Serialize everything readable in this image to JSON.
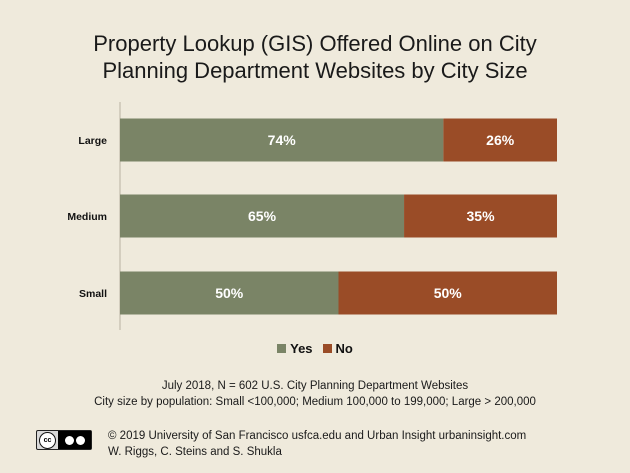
{
  "chart_data": {
    "type": "bar",
    "orientation": "horizontal",
    "stacked": true,
    "title": "Property Lookup (GIS) Offered Online on City Planning Department Websites by City Size",
    "title_lines": [
      "Property Lookup (GIS) Offered Online on City",
      "Planning Department Websites by City Size"
    ],
    "categories": [
      "Large",
      "Medium",
      "Small"
    ],
    "series": [
      {
        "name": "Yes",
        "values": [
          74,
          65,
          50
        ],
        "labels": [
          "74%",
          "65%",
          "50%"
        ],
        "color": "#7a8466"
      },
      {
        "name": "No",
        "values": [
          26,
          35,
          50
        ],
        "labels": [
          "26%",
          "35%",
          "50%"
        ],
        "color": "#9a4c27"
      }
    ],
    "xlim": [
      0,
      100
    ],
    "grid": false,
    "legend_position": "bottom"
  },
  "notes": [
    "July 2018, N = 602 U.S. City Planning Department Websites",
    "City size by population:  Small <100,000; Medium 100,000 to 199,000; Large > 200,000"
  ],
  "license": {
    "badge_text": "cc",
    "icon": "creative-commons-by-sa-badge"
  },
  "credits": [
    "© 2019 University of San Francisco usfca.edu and Urban Insight urbaninsight.com",
    "W. Riggs, C. Steins and S. Shukla"
  ]
}
